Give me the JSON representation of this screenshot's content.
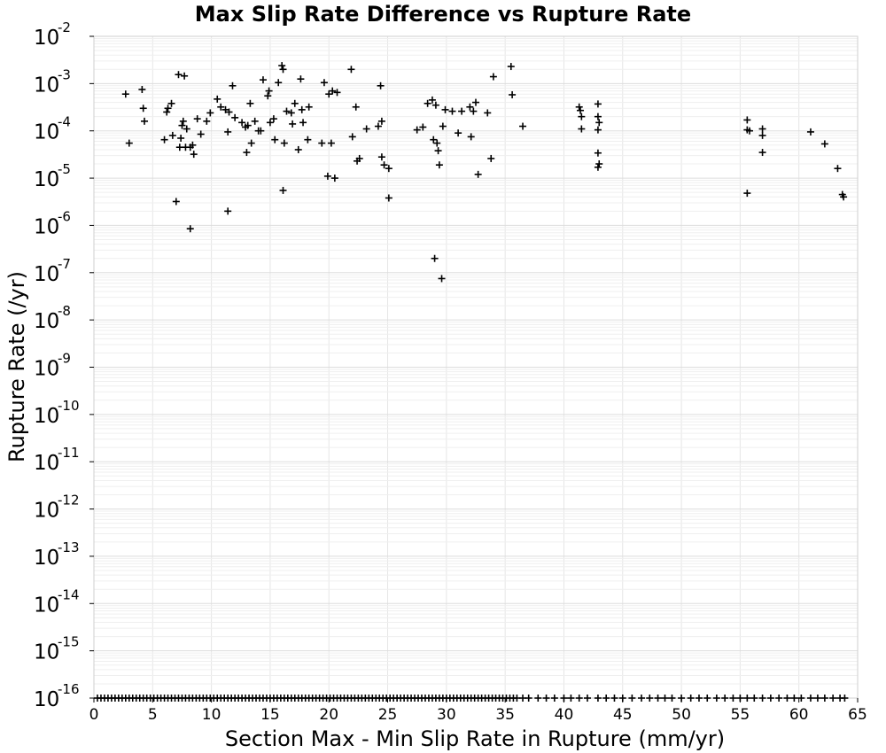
{
  "chart_data": {
    "type": "scatter",
    "title": "Max Slip Rate Difference vs Rupture Rate",
    "xlabel": "Section Max - Min Slip Rate in Rupture (mm/yr)",
    "ylabel": "Rupture Rate (/yr)",
    "xlim": [
      0,
      65
    ],
    "ylim": [
      1e-16,
      0.01
    ],
    "yscale": "log",
    "grid": true,
    "marker": "plus",
    "marker_color": "#000000",
    "grid_color": "#e6e6e6",
    "xticks": [
      "0",
      "5",
      "10",
      "15",
      "20",
      "25",
      "30",
      "35",
      "40",
      "45",
      "50",
      "55",
      "60",
      "65"
    ],
    "yticks": [
      {
        "base": "10",
        "exp": "-2"
      },
      {
        "base": "10",
        "exp": "-3"
      },
      {
        "base": "10",
        "exp": "-4"
      },
      {
        "base": "10",
        "exp": "-5"
      },
      {
        "base": "10",
        "exp": "-6"
      },
      {
        "base": "10",
        "exp": "-7"
      },
      {
        "base": "10",
        "exp": "-8"
      },
      {
        "base": "10",
        "exp": "-9"
      },
      {
        "base": "10",
        "exp": "-10"
      },
      {
        "base": "10",
        "exp": "-11"
      },
      {
        "base": "10",
        "exp": "-12"
      },
      {
        "base": "10",
        "exp": "-13"
      },
      {
        "base": "10",
        "exp": "-14"
      },
      {
        "base": "10",
        "exp": "-15"
      },
      {
        "base": "10",
        "exp": "-16"
      }
    ],
    "points": [
      [
        2.7,
        0.0006
      ],
      [
        3.0,
        5.5e-05
      ],
      [
        4.1,
        0.00075
      ],
      [
        4.2,
        0.0003
      ],
      [
        4.3,
        0.00016
      ],
      [
        6.0,
        6.5e-05
      ],
      [
        6.2,
        0.00025
      ],
      [
        6.3,
        0.0003
      ],
      [
        6.6,
        0.00038
      ],
      [
        6.7,
        8e-05
      ],
      [
        7.0,
        3.2e-06
      ],
      [
        7.2,
        0.00155
      ],
      [
        7.3,
        4.5e-05
      ],
      [
        7.4,
        7e-05
      ],
      [
        7.5,
        0.00013
      ],
      [
        7.6,
        0.00016
      ],
      [
        7.7,
        0.00145
      ],
      [
        7.8,
        4.5e-05
      ],
      [
        7.9,
        0.00011
      ],
      [
        8.2,
        8.5e-07
      ],
      [
        8.2,
        4.5e-05
      ],
      [
        8.4,
        5e-05
      ],
      [
        8.5,
        3.2e-05
      ],
      [
        8.8,
        0.00018
      ],
      [
        9.1,
        8.5e-05
      ],
      [
        9.6,
        0.00016
      ],
      [
        9.9,
        0.00024
      ],
      [
        10.5,
        0.00047
      ],
      [
        10.8,
        0.00032
      ],
      [
        11.2,
        0.00028
      ],
      [
        11.4,
        2e-06
      ],
      [
        11.4,
        9.5e-05
      ],
      [
        11.5,
        0.00025
      ],
      [
        11.8,
        0.0009
      ],
      [
        12.0,
        0.00019
      ],
      [
        12.6,
        0.00015
      ],
      [
        12.9,
        0.00012
      ],
      [
        13.0,
        3.5e-05
      ],
      [
        13.1,
        0.00013
      ],
      [
        13.3,
        0.00038
      ],
      [
        13.4,
        5.5e-05
      ],
      [
        13.7,
        0.00016
      ],
      [
        14.0,
        0.0001
      ],
      [
        14.2,
        0.0001
      ],
      [
        14.4,
        0.0012
      ],
      [
        14.8,
        0.00055
      ],
      [
        14.9,
        0.0007
      ],
      [
        15.0,
        0.00015
      ],
      [
        15.3,
        0.00018
      ],
      [
        15.4,
        6.5e-05
      ],
      [
        15.7,
        0.00105
      ],
      [
        16.0,
        0.0024
      ],
      [
        16.1,
        0.002
      ],
      [
        16.2,
        5.5e-05
      ],
      [
        16.1,
        5.5e-06
      ],
      [
        16.4,
        0.00026
      ],
      [
        16.8,
        0.00024
      ],
      [
        16.9,
        0.00014
      ],
      [
        17.1,
        0.00038
      ],
      [
        17.4,
        4e-05
      ],
      [
        17.6,
        0.00125
      ],
      [
        17.7,
        0.00028
      ],
      [
        17.8,
        0.00015
      ],
      [
        18.2,
        6.5e-05
      ],
      [
        18.3,
        0.00032
      ],
      [
        19.4,
        5.5e-05
      ],
      [
        19.6,
        0.00105
      ],
      [
        19.9,
        1.1e-05
      ],
      [
        20.0,
        0.0006
      ],
      [
        20.2,
        5.5e-05
      ],
      [
        20.3,
        0.0007
      ],
      [
        20.5,
        1e-05
      ],
      [
        20.7,
        0.00065
      ],
      [
        21.9,
        0.002
      ],
      [
        22.0,
        7.5e-05
      ],
      [
        22.3,
        0.00032
      ],
      [
        22.4,
        2.3e-05
      ],
      [
        22.6,
        2.6e-05
      ],
      [
        23.2,
        0.00011
      ],
      [
        24.2,
        0.000125
      ],
      [
        24.4,
        0.0009
      ],
      [
        24.5,
        0.00016
      ],
      [
        24.5,
        2.8e-05
      ],
      [
        24.7,
        1.9e-05
      ],
      [
        25.1,
        1.6e-05
      ],
      [
        25.1,
        3.8e-06
      ],
      [
        27.5,
        0.000105
      ],
      [
        28.0,
        0.00012
      ],
      [
        28.4,
        0.00038
      ],
      [
        28.8,
        0.00045
      ],
      [
        28.9,
        6.5e-05
      ],
      [
        29.0,
        2e-07
      ],
      [
        29.1,
        0.00035
      ],
      [
        29.2,
        5.5e-05
      ],
      [
        29.3,
        3.8e-05
      ],
      [
        29.4,
        1.9e-05
      ],
      [
        29.6,
        7.5e-08
      ],
      [
        29.7,
        0.000125
      ],
      [
        29.9,
        0.00028
      ],
      [
        30.5,
        0.00026
      ],
      [
        31.0,
        9e-05
      ],
      [
        31.3,
        0.00026
      ],
      [
        32.0,
        0.00032
      ],
      [
        32.1,
        7.5e-05
      ],
      [
        32.3,
        0.00026
      ],
      [
        32.5,
        0.0004
      ],
      [
        32.7,
        1.2e-05
      ],
      [
        33.5,
        0.00024
      ],
      [
        33.8,
        2.6e-05
      ],
      [
        34.0,
        0.0014
      ],
      [
        35.5,
        0.0023
      ],
      [
        35.6,
        0.00058
      ],
      [
        36.5,
        0.000125
      ],
      [
        41.3,
        0.00032
      ],
      [
        41.4,
        0.00027
      ],
      [
        41.5,
        0.0002
      ],
      [
        41.5,
        0.00011
      ],
      [
        42.9,
        0.00037
      ],
      [
        42.9,
        0.0002
      ],
      [
        43.0,
        0.00015
      ],
      [
        42.9,
        0.000105
      ],
      [
        42.9,
        3.4e-05
      ],
      [
        43.0,
        2e-05
      ],
      [
        42.9,
        1.7e-05
      ],
      [
        55.6,
        0.00017
      ],
      [
        55.6,
        0.000105
      ],
      [
        55.8,
        0.0001
      ],
      [
        55.6,
        4.8e-06
      ],
      [
        56.9,
        0.00011
      ],
      [
        56.9,
        8e-05
      ],
      [
        56.9,
        3.5e-05
      ],
      [
        61.0,
        9.5e-05
      ],
      [
        62.2,
        5.3e-05
      ],
      [
        63.3,
        1.6e-05
      ],
      [
        63.7,
        4.5e-06
      ],
      [
        63.8,
        4e-06
      ]
    ],
    "floor_points_x": [
      0.3,
      0.6,
      0.9,
      1.2,
      1.5,
      1.8,
      2.1,
      2.4,
      2.7,
      3.0,
      3.3,
      3.6,
      3.9,
      4.2,
      4.5,
      4.8,
      5.1,
      5.4,
      5.7,
      6.0,
      6.3,
      6.6,
      6.9,
      7.2,
      7.5,
      7.8,
      8.1,
      8.4,
      8.7,
      9.0,
      9.3,
      9.6,
      9.9,
      10.2,
      10.5,
      10.8,
      11.1,
      11.4,
      11.7,
      12.0,
      12.3,
      12.6,
      12.9,
      13.2,
      13.5,
      13.8,
      14.1,
      14.4,
      14.7,
      15.0,
      15.3,
      15.6,
      15.9,
      16.2,
      16.5,
      16.8,
      17.1,
      17.4,
      17.7,
      18.0,
      18.3,
      18.6,
      18.9,
      19.2,
      19.5,
      19.8,
      20.1,
      20.4,
      20.7,
      21.0,
      21.3,
      21.6,
      21.9,
      22.2,
      22.5,
      22.8,
      23.1,
      23.4,
      23.7,
      24.0,
      24.3,
      24.6,
      24.9,
      25.2,
      25.5,
      25.8,
      26.1,
      26.4,
      26.7,
      27.0,
      27.3,
      27.6,
      27.9,
      28.2,
      28.5,
      28.8,
      29.1,
      29.4,
      29.7,
      30.0,
      30.3,
      30.6,
      30.9,
      31.2,
      31.5,
      31.8,
      32.1,
      32.4,
      32.7,
      33.0,
      33.3,
      33.6,
      33.9,
      34.2,
      34.5,
      34.8,
      35.1,
      35.4,
      35.7,
      36.0,
      36.5,
      37.0,
      37.8,
      38.5,
      39.2,
      40.0,
      40.6,
      41.3,
      42.0,
      42.9,
      43.6,
      44.3,
      45.0,
      45.8,
      46.6,
      47.3,
      48.0,
      48.6,
      49.2,
      50.0,
      50.8,
      51.5,
      52.2,
      53.0,
      53.7,
      54.4,
      55.0,
      55.6,
      56.2,
      56.9,
      57.6,
      58.3,
      59.0,
      59.6,
      60.2,
      61.0,
      61.6,
      62.2,
      62.9,
      63.5,
      63.9
    ]
  }
}
